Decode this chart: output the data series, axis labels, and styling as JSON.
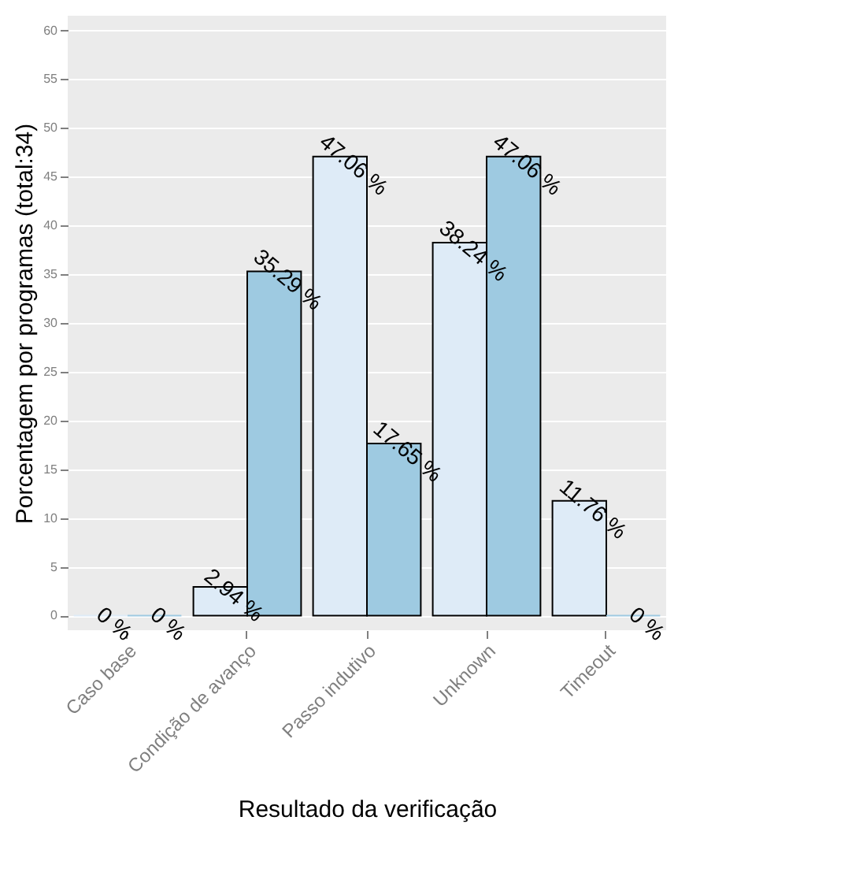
{
  "chart_data": {
    "type": "bar",
    "xlabel": "Resultado da verificação",
    "ylabel": "Porcentagem por programas (total:34)",
    "categories": [
      "Caso base",
      "Condição de avanço",
      "Passo indutivo",
      "Unknown",
      "Timeout"
    ],
    "series": [
      {
        "color": "#deebf7",
        "values": [
          0,
          2.94,
          47.06,
          38.24,
          11.76
        ],
        "value_labels": [
          "0 %",
          "2.94 %",
          "47.06 %",
          "38.24 %",
          "11.76 %"
        ]
      },
      {
        "color": "#9ecae1",
        "values": [
          0,
          35.29,
          17.65,
          47.06,
          0
        ],
        "value_labels": [
          "0 %",
          "35.29 %",
          "17.65 %",
          "47.06 %",
          "0 %"
        ]
      }
    ],
    "ylim": [
      -1.5,
      61.5
    ],
    "yticks": [
      0,
      5,
      10,
      15,
      20,
      25,
      30,
      35,
      40,
      45,
      50,
      55,
      60
    ],
    "grid": true
  }
}
